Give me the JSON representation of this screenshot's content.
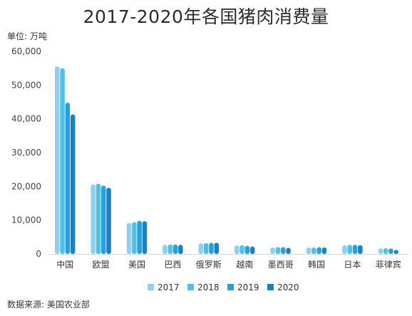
{
  "header": {
    "title": "2017-2020年各国猪肉消费量",
    "unit": "单位: 万吨"
  },
  "footer": {
    "source": "数据来源: 美国农业部"
  },
  "chart_data": {
    "type": "bar",
    "title": "2017-2020年各国猪肉消费量",
    "xlabel": "",
    "ylabel": "",
    "ylim": [
      0,
      60000
    ],
    "yticks": [
      0,
      10000,
      20000,
      30000,
      40000,
      50000,
      60000
    ],
    "ytick_labels": [
      "0",
      "10,000",
      "20,000",
      "30,000",
      "40,000",
      "50,000",
      "60,000"
    ],
    "grid": false,
    "legend": "bottom",
    "categories": [
      "中国",
      "欧盟",
      "美国",
      "巴西",
      "俄罗斯",
      "越南",
      "墨西哥",
      "韩国",
      "日本",
      "菲律宾"
    ],
    "series": [
      {
        "name": "2017",
        "color": "#8fd0ec",
        "values": [
          55500,
          20600,
          9200,
          2700,
          3100,
          2500,
          1900,
          1900,
          2600,
          1600
        ]
      },
      {
        "name": "2018",
        "color": "#4fc0e6",
        "values": [
          55000,
          20800,
          9400,
          2800,
          3200,
          2600,
          2000,
          1900,
          2700,
          1700
        ]
      },
      {
        "name": "2019",
        "color": "#2c9ed8",
        "values": [
          44800,
          20200,
          9800,
          2800,
          3300,
          2400,
          2000,
          2000,
          2700,
          1600
        ]
      },
      {
        "name": "2020",
        "color": "#1d7fc4",
        "values": [
          41300,
          19600,
          9700,
          2700,
          3300,
          2200,
          1800,
          1900,
          2600,
          1200
        ]
      }
    ]
  }
}
